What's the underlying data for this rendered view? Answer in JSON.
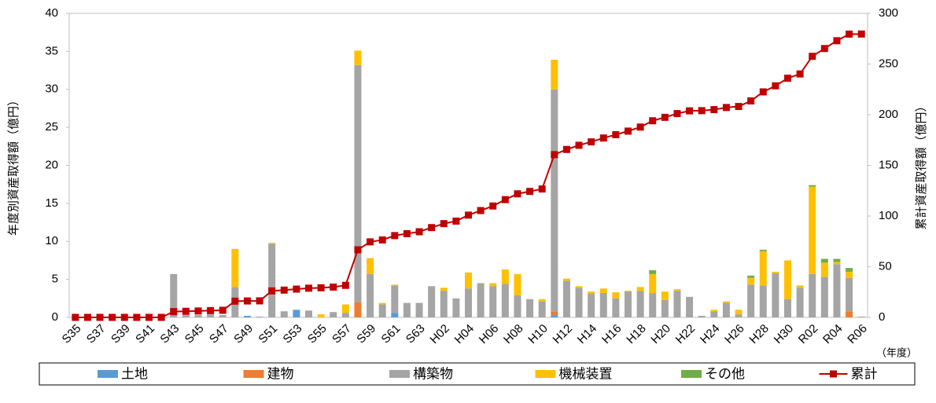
{
  "chart_data": {
    "type": "bar",
    "stacked": true,
    "ylabel": "年度別資産取得額（億円）",
    "y2label": "累計資産取得額（億円）",
    "xlabel": "（年度）",
    "categories": [
      "S35",
      null,
      "S37",
      null,
      "S39",
      null,
      "S41",
      null,
      "S43",
      null,
      "S45",
      null,
      "S47",
      null,
      "S49",
      null,
      "S51",
      null,
      "S53",
      null,
      "S55",
      null,
      "S57",
      null,
      "S59",
      null,
      "S61",
      null,
      "S63",
      null,
      "H02",
      null,
      "H04",
      null,
      "H06",
      null,
      "H08",
      null,
      "H10",
      null,
      "H12",
      null,
      "H14",
      null,
      "H16",
      null,
      "H18",
      null,
      "H20",
      null,
      "H22",
      null,
      "H24",
      null,
      "H26",
      null,
      "H28",
      null,
      "H30",
      null,
      "R02",
      null,
      "R04",
      null,
      "R06"
    ],
    "series": [
      {
        "name": "土地",
        "color": "#5b9bd5",
        "values": [
          0,
          0,
          0,
          0,
          0,
          0,
          0,
          0,
          0,
          0,
          0,
          0,
          0,
          0,
          0.2,
          0,
          0,
          0,
          1.0,
          0,
          0,
          0,
          0,
          0,
          0,
          0,
          0.6,
          0,
          0,
          0,
          0,
          0,
          0,
          0,
          0,
          0,
          0,
          0,
          0,
          0.3,
          0,
          0,
          0,
          0,
          0,
          0,
          0,
          0,
          0,
          0,
          0,
          0,
          0,
          0,
          0,
          0,
          0,
          0,
          0,
          0,
          0,
          0,
          0,
          0,
          0
        ]
      },
      {
        "name": "建物",
        "color": "#ed7d31",
        "values": [
          0,
          0,
          0,
          0,
          0,
          0,
          0,
          0,
          0,
          0,
          0,
          0,
          0,
          0,
          0,
          0,
          0,
          0,
          0,
          0,
          0,
          0,
          0,
          2.0,
          0,
          0,
          0,
          0,
          0,
          0,
          0,
          0,
          0,
          0,
          0,
          0,
          0,
          0,
          0,
          0.5,
          0,
          0,
          0,
          0,
          0,
          0,
          0,
          0,
          0,
          0,
          0,
          0,
          0,
          0,
          0,
          0,
          0,
          0,
          0,
          0,
          0,
          0,
          0,
          0.8,
          0
        ]
      },
      {
        "name": "構築物",
        "color": "#a5a5a5",
        "values": [
          0,
          0,
          0,
          0,
          0,
          0,
          0,
          0,
          5.7,
          0.3,
          0.3,
          0.4,
          0.3,
          4.0,
          0,
          0.1,
          9.7,
          0.8,
          0,
          0.9,
          0,
          0.7,
          0.6,
          31.2,
          5.7,
          1.7,
          3.6,
          1.9,
          1.9,
          4.1,
          3.5,
          2.5,
          3.8,
          4.5,
          4.1,
          4.4,
          2.9,
          2.4,
          2.1,
          29.2,
          4.8,
          3.9,
          3.1,
          3.2,
          2.5,
          3.4,
          3.5,
          3.2,
          2.3,
          3.5,
          2.7,
          0.2,
          0.8,
          1.9,
          0.4,
          4.3,
          4.2,
          5.8,
          2.4,
          3.9,
          5.7,
          5.3,
          7.0,
          4.4,
          0.1
        ]
      },
      {
        "name": "機械装置",
        "color": "#ffc000",
        "values": [
          0,
          0,
          0,
          0,
          0,
          0,
          0,
          0,
          0,
          0,
          0,
          0,
          0,
          5.0,
          0,
          0,
          0.1,
          0,
          0,
          0,
          0.4,
          0,
          1.1,
          1.9,
          2.1,
          0.2,
          0.1,
          0,
          0,
          0,
          0.4,
          0,
          2.1,
          0,
          0.4,
          1.9,
          2.8,
          0,
          0.3,
          3.9,
          0.3,
          0.2,
          0.3,
          0.6,
          0.8,
          0.1,
          0.5,
          2.5,
          1.1,
          0.2,
          0,
          0,
          0.2,
          0.2,
          0.6,
          0.9,
          4.5,
          0.2,
          5.1,
          0.3,
          11.5,
          1.9,
          0.3,
          0.8,
          0
        ]
      },
      {
        "name": "その他",
        "color": "#70ad47",
        "values": [
          0,
          0,
          0,
          0,
          0,
          0,
          0,
          0,
          0,
          0,
          0,
          0,
          0,
          0,
          0,
          0,
          0,
          0,
          0,
          0,
          0,
          0,
          0,
          0,
          0,
          0,
          0,
          0,
          0,
          0,
          0,
          0,
          0,
          0,
          0,
          0,
          0,
          0,
          0,
          0,
          0,
          0,
          0,
          0,
          0,
          0,
          0,
          0.5,
          0,
          0,
          0,
          0,
          0,
          0,
          0,
          0.3,
          0.2,
          0,
          0,
          0,
          0.2,
          0.5,
          0.4,
          0.5,
          0
        ]
      },
      {
        "name": "累計",
        "color": "#c00000",
        "type": "line",
        "axis": "y2",
        "values": [
          0,
          0,
          0,
          0,
          0,
          0,
          0,
          0,
          5.7,
          6.0,
          6.3,
          6.7,
          7.0,
          16.0,
          16.2,
          16.3,
          26.1,
          26.9,
          27.9,
          28.8,
          29.2,
          29.9,
          31.6,
          66.7,
          74.5,
          76.4,
          80.7,
          82.6,
          84.5,
          88.6,
          92.5,
          95.0,
          100.9,
          105.4,
          109.9,
          116.2,
          121.9,
          124.3,
          126.7,
          160.6,
          165.7,
          169.8,
          173.2,
          177.0,
          180.3,
          183.8,
          187.8,
          194.0,
          197.4,
          201.1,
          203.8,
          204.0,
          205.0,
          207.1,
          208.1,
          213.6,
          222.5,
          228.5,
          236.0,
          240.2,
          257.6,
          265.3,
          273.0,
          279.5,
          279.6
        ]
      }
    ],
    "ylim": [
      0,
      40
    ],
    "yticks": [
      0,
      5,
      10,
      15,
      20,
      25,
      30,
      35,
      40
    ],
    "y2lim": [
      0,
      300
    ],
    "y2ticks": [
      0,
      50,
      100,
      150,
      200,
      250,
      300
    ],
    "legend": "bottom"
  }
}
